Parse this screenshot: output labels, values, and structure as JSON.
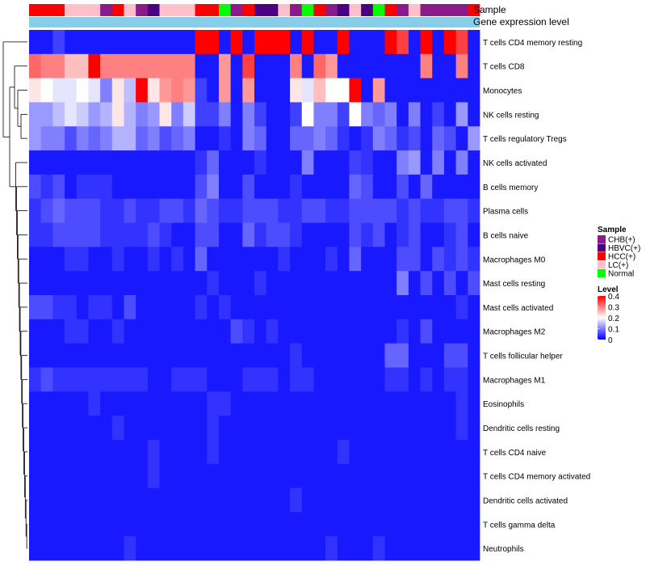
{
  "chart_data": {
    "type": "heatmap",
    "title": "",
    "annotation_labels": [
      "Sample",
      "Gene expression level"
    ],
    "rows": [
      "T cells CD4 memory resting",
      "T cells CD8",
      "Monocytes",
      "NK cells resting",
      "T cells regulatory  Tregs",
      "NK cells activated",
      "B cells memory",
      "Plasma cells",
      "B cells naive",
      "Macrophages M0",
      "Mast cells resting",
      "Mast cells activated",
      "Macrophages M2",
      "T cells follicular helper",
      "Macrophages M1",
      "Eosinophils",
      "Dendritic cells resting",
      "T cells CD4 naive",
      "T cells CD4 memory activated",
      "Dendritic cells activated",
      "T cells gamma delta",
      "Neutrophils"
    ],
    "column_samples": [
      "HCC(+)",
      "HCC(+)",
      "HCC(+)",
      "LC(+)",
      "LC(+)",
      "LC(+)",
      "CHB(+)",
      "HCC(+)",
      "LC(+)",
      "CHB(+)",
      "HBVC(+)",
      "LC(+)",
      "LC(+)",
      "LC(+)",
      "HCC(+)",
      "HCC(+)",
      "Normal",
      "CHB(+)",
      "HCC(+)",
      "HBVC(+)",
      "HBVC(+)",
      "LC(+)",
      "CHB(+)",
      "Normal",
      "HCC(+)",
      "CHB(+)",
      "HBVC(+)",
      "LC(+)",
      "HBVC(+)",
      "Normal",
      "HCC(+)",
      "CHB(+)",
      "LC(+)",
      "CHB(+)",
      "CHB(+)",
      "CHB(+)",
      "CHB(+)",
      "HCC(+)"
    ],
    "values": [
      [
        0.02,
        0.02,
        0.05,
        0.02,
        0.02,
        0.02,
        0.02,
        0.02,
        0.02,
        0.02,
        0.02,
        0.02,
        0.02,
        0.02,
        0.4,
        0.4,
        0.02,
        0.4,
        0.02,
        0.4,
        0.4,
        0.4,
        0.02,
        0.4,
        0.02,
        0.02,
        0.4,
        0.02,
        0.02,
        0.02,
        0.4,
        0.35,
        0.02,
        0.4,
        0.02,
        0.4,
        0.35,
        0.02
      ],
      [
        0.32,
        0.3,
        0.3,
        0.25,
        0.25,
        0.4,
        0.3,
        0.3,
        0.3,
        0.3,
        0.3,
        0.3,
        0.3,
        0.3,
        0.02,
        0.02,
        0.28,
        0.02,
        0.35,
        0.02,
        0.02,
        0.02,
        0.3,
        0.02,
        0.32,
        0.28,
        0.02,
        0.02,
        0.02,
        0.02,
        0.02,
        0.02,
        0.02,
        0.3,
        0.02,
        0.02,
        0.3,
        0.02
      ],
      [
        0.22,
        0.2,
        0.18,
        0.18,
        0.2,
        0.18,
        0.1,
        0.22,
        0.15,
        0.4,
        0.22,
        0.28,
        0.3,
        0.28,
        0.05,
        0.02,
        0.28,
        0.02,
        0.28,
        0.02,
        0.02,
        0.02,
        0.22,
        0.18,
        0.25,
        0.2,
        0.2,
        0.45,
        0.02,
        0.28,
        0.02,
        0.02,
        0.02,
        0.02,
        0.02,
        0.02,
        0.02,
        0.02
      ],
      [
        0.12,
        0.12,
        0.15,
        0.18,
        0.16,
        0.12,
        0.14,
        0.22,
        0.14,
        0.1,
        0.12,
        0.22,
        0.1,
        0.16,
        0.05,
        0.05,
        0.1,
        0.02,
        0.1,
        0.05,
        0.02,
        0.02,
        0.05,
        0.2,
        0.1,
        0.1,
        0.05,
        0.2,
        0.1,
        0.08,
        0.1,
        0.02,
        0.1,
        0.02,
        0.05,
        0.02,
        0.12,
        0.02
      ],
      [
        0.12,
        0.1,
        0.1,
        0.06,
        0.1,
        0.08,
        0.1,
        0.14,
        0.14,
        0.08,
        0.1,
        0.06,
        0.08,
        0.1,
        0.02,
        0.02,
        0.04,
        0.02,
        0.1,
        0.08,
        0.02,
        0.02,
        0.08,
        0.08,
        0.1,
        0.08,
        0.04,
        0.02,
        0.04,
        0.1,
        0.08,
        0.04,
        0.06,
        0.02,
        0.08,
        0.06,
        0.02,
        0.12
      ],
      [
        0.02,
        0.02,
        0.02,
        0.02,
        0.02,
        0.02,
        0.02,
        0.02,
        0.02,
        0.02,
        0.02,
        0.02,
        0.02,
        0.02,
        0.04,
        0.08,
        0.02,
        0.02,
        0.02,
        0.04,
        0.02,
        0.02,
        0.02,
        0.1,
        0.02,
        0.02,
        0.02,
        0.05,
        0.04,
        0.02,
        0.02,
        0.1,
        0.12,
        0.02,
        0.1,
        0.02,
        0.1,
        0.02
      ],
      [
        0.06,
        0.04,
        0.06,
        0.02,
        0.04,
        0.04,
        0.04,
        0.02,
        0.02,
        0.02,
        0.02,
        0.02,
        0.02,
        0.02,
        0.06,
        0.1,
        0.02,
        0.02,
        0.06,
        0.02,
        0.02,
        0.02,
        0.04,
        0.02,
        0.02,
        0.02,
        0.02,
        0.08,
        0.06,
        0.02,
        0.02,
        0.06,
        0.02,
        0.08,
        0.02,
        0.02,
        0.02,
        0.02
      ],
      [
        0.04,
        0.06,
        0.08,
        0.06,
        0.06,
        0.06,
        0.04,
        0.04,
        0.06,
        0.04,
        0.04,
        0.06,
        0.06,
        0.04,
        0.08,
        0.06,
        0.04,
        0.04,
        0.06,
        0.06,
        0.06,
        0.04,
        0.04,
        0.06,
        0.06,
        0.04,
        0.04,
        0.06,
        0.06,
        0.06,
        0.06,
        0.04,
        0.06,
        0.04,
        0.04,
        0.06,
        0.06,
        0.04
      ],
      [
        0.04,
        0.04,
        0.06,
        0.06,
        0.06,
        0.06,
        0.04,
        0.04,
        0.04,
        0.04,
        0.06,
        0.04,
        0.02,
        0.02,
        0.06,
        0.06,
        0.02,
        0.02,
        0.08,
        0.04,
        0.06,
        0.06,
        0.04,
        0.02,
        0.02,
        0.02,
        0.02,
        0.06,
        0.04,
        0.06,
        0.02,
        0.04,
        0.06,
        0.02,
        0.02,
        0.04,
        0.06,
        0.02
      ],
      [
        0.02,
        0.02,
        0.02,
        0.04,
        0.04,
        0.02,
        0.02,
        0.04,
        0.02,
        0.02,
        0.04,
        0.02,
        0.04,
        0.02,
        0.08,
        0.02,
        0.02,
        0.02,
        0.02,
        0.02,
        0.02,
        0.04,
        0.02,
        0.02,
        0.02,
        0.04,
        0.02,
        0.08,
        0.02,
        0.02,
        0.02,
        0.06,
        0.06,
        0.02,
        0.06,
        0.04,
        0.06,
        0.04
      ],
      [
        0.02,
        0.02,
        0.02,
        0.02,
        0.02,
        0.02,
        0.02,
        0.02,
        0.02,
        0.02,
        0.02,
        0.02,
        0.02,
        0.02,
        0.02,
        0.04,
        0.02,
        0.02,
        0.02,
        0.04,
        0.02,
        0.02,
        0.02,
        0.02,
        0.02,
        0.02,
        0.02,
        0.02,
        0.02,
        0.02,
        0.02,
        0.1,
        0.02,
        0.06,
        0.02,
        0.06,
        0.02,
        0.06
      ],
      [
        0.06,
        0.06,
        0.04,
        0.04,
        0.02,
        0.04,
        0.04,
        0.02,
        0.06,
        0.02,
        0.02,
        0.02,
        0.02,
        0.02,
        0.04,
        0.02,
        0.04,
        0.02,
        0.02,
        0.02,
        0.02,
        0.02,
        0.02,
        0.02,
        0.02,
        0.02,
        0.02,
        0.02,
        0.02,
        0.02,
        0.02,
        0.02,
        0.02,
        0.02,
        0.02,
        0.02,
        0.04,
        0.02
      ],
      [
        0.02,
        0.02,
        0.02,
        0.04,
        0.04,
        0.02,
        0.02,
        0.04,
        0.02,
        0.02,
        0.02,
        0.02,
        0.02,
        0.02,
        0.02,
        0.02,
        0.02,
        0.06,
        0.04,
        0.02,
        0.04,
        0.02,
        0.02,
        0.02,
        0.02,
        0.02,
        0.02,
        0.02,
        0.02,
        0.02,
        0.02,
        0.04,
        0.02,
        0.06,
        0.02,
        0.02,
        0.02,
        0.02
      ],
      [
        0.02,
        0.02,
        0.02,
        0.02,
        0.02,
        0.02,
        0.02,
        0.02,
        0.02,
        0.02,
        0.02,
        0.02,
        0.02,
        0.02,
        0.02,
        0.02,
        0.02,
        0.02,
        0.02,
        0.02,
        0.02,
        0.02,
        0.04,
        0.02,
        0.02,
        0.02,
        0.02,
        0.02,
        0.02,
        0.02,
        0.08,
        0.08,
        0.02,
        0.02,
        0.02,
        0.06,
        0.06,
        0.02
      ],
      [
        0.04,
        0.06,
        0.04,
        0.04,
        0.04,
        0.04,
        0.04,
        0.04,
        0.04,
        0.04,
        0.02,
        0.02,
        0.04,
        0.04,
        0.04,
        0.02,
        0.02,
        0.02,
        0.04,
        0.04,
        0.04,
        0.02,
        0.04,
        0.04,
        0.02,
        0.02,
        0.02,
        0.02,
        0.02,
        0.02,
        0.04,
        0.04,
        0.02,
        0.04,
        0.02,
        0.04,
        0.04,
        0.02
      ],
      [
        0.02,
        0.02,
        0.02,
        0.02,
        0.02,
        0.04,
        0.02,
        0.02,
        0.02,
        0.02,
        0.02,
        0.02,
        0.02,
        0.02,
        0.02,
        0.04,
        0.04,
        0.02,
        0.02,
        0.02,
        0.02,
        0.02,
        0.02,
        0.02,
        0.02,
        0.02,
        0.02,
        0.02,
        0.02,
        0.02,
        0.02,
        0.02,
        0.02,
        0.02,
        0.02,
        0.02,
        0.04,
        0.02
      ],
      [
        0.02,
        0.02,
        0.02,
        0.02,
        0.02,
        0.02,
        0.02,
        0.04,
        0.02,
        0.02,
        0.02,
        0.02,
        0.02,
        0.02,
        0.02,
        0.04,
        0.02,
        0.02,
        0.02,
        0.02,
        0.02,
        0.02,
        0.02,
        0.02,
        0.02,
        0.02,
        0.02,
        0.02,
        0.02,
        0.02,
        0.02,
        0.02,
        0.02,
        0.02,
        0.02,
        0.02,
        0.04,
        0.02
      ],
      [
        0.02,
        0.02,
        0.02,
        0.02,
        0.02,
        0.02,
        0.02,
        0.02,
        0.02,
        0.02,
        0.04,
        0.02,
        0.02,
        0.02,
        0.02,
        0.04,
        0.02,
        0.02,
        0.02,
        0.02,
        0.02,
        0.02,
        0.02,
        0.02,
        0.02,
        0.02,
        0.04,
        0.02,
        0.02,
        0.02,
        0.02,
        0.02,
        0.02,
        0.02,
        0.02,
        0.02,
        0.02,
        0.02
      ],
      [
        0.02,
        0.02,
        0.02,
        0.02,
        0.02,
        0.02,
        0.02,
        0.02,
        0.02,
        0.02,
        0.04,
        0.02,
        0.02,
        0.02,
        0.02,
        0.02,
        0.02,
        0.02,
        0.02,
        0.02,
        0.02,
        0.02,
        0.02,
        0.02,
        0.02,
        0.02,
        0.02,
        0.02,
        0.02,
        0.02,
        0.02,
        0.02,
        0.02,
        0.02,
        0.02,
        0.02,
        0.02,
        0.02
      ],
      [
        0.02,
        0.02,
        0.02,
        0.02,
        0.02,
        0.02,
        0.02,
        0.02,
        0.02,
        0.02,
        0.02,
        0.02,
        0.02,
        0.02,
        0.02,
        0.02,
        0.02,
        0.02,
        0.02,
        0.02,
        0.02,
        0.02,
        0.04,
        0.02,
        0.02,
        0.02,
        0.02,
        0.02,
        0.02,
        0.02,
        0.02,
        0.02,
        0.02,
        0.02,
        0.02,
        0.02,
        0.02,
        0.02
      ],
      [
        0.02,
        0.02,
        0.02,
        0.02,
        0.02,
        0.02,
        0.02,
        0.02,
        0.02,
        0.02,
        0.02,
        0.02,
        0.02,
        0.02,
        0.02,
        0.02,
        0.02,
        0.02,
        0.02,
        0.02,
        0.02,
        0.02,
        0.02,
        0.02,
        0.02,
        0.02,
        0.02,
        0.02,
        0.02,
        0.02,
        0.02,
        0.02,
        0.02,
        0.02,
        0.02,
        0.02,
        0.02,
        0.02
      ],
      [
        0.02,
        0.02,
        0.02,
        0.02,
        0.02,
        0.02,
        0.02,
        0.02,
        0.04,
        0.02,
        0.02,
        0.02,
        0.02,
        0.02,
        0.02,
        0.02,
        0.02,
        0.02,
        0.02,
        0.02,
        0.02,
        0.02,
        0.02,
        0.02,
        0.02,
        0.04,
        0.02,
        0.02,
        0.02,
        0.04,
        0.02,
        0.02,
        0.02,
        0.02,
        0.02,
        0.02,
        0.02,
        0.02
      ]
    ],
    "value_range": [
      0,
      0.4
    ],
    "legend": {
      "sample_title": "Sample",
      "sample_entries": [
        {
          "label": "CHB(+)",
          "color": "#8b1a8b"
        },
        {
          "label": "HBVC(+)",
          "color": "#4b0082"
        },
        {
          "label": "HCC(+)",
          "color": "#ff0000"
        },
        {
          "label": "LC(+)",
          "color": "#ffc0cb"
        },
        {
          "label": "Normal",
          "color": "#00ff00"
        }
      ],
      "level_title": "Level",
      "level_ticks": [
        "0.4",
        "0.3",
        "0.2",
        "0.1",
        "0"
      ],
      "level_tick_values": [
        0.4,
        0.3,
        0.2,
        0.1,
        0
      ]
    },
    "colors": {
      "low": "#0000ff",
      "mid": "#ffffff",
      "high": "#ff0000",
      "expression_bar": "#87ceeb",
      "dendrogram": "#000000"
    }
  }
}
